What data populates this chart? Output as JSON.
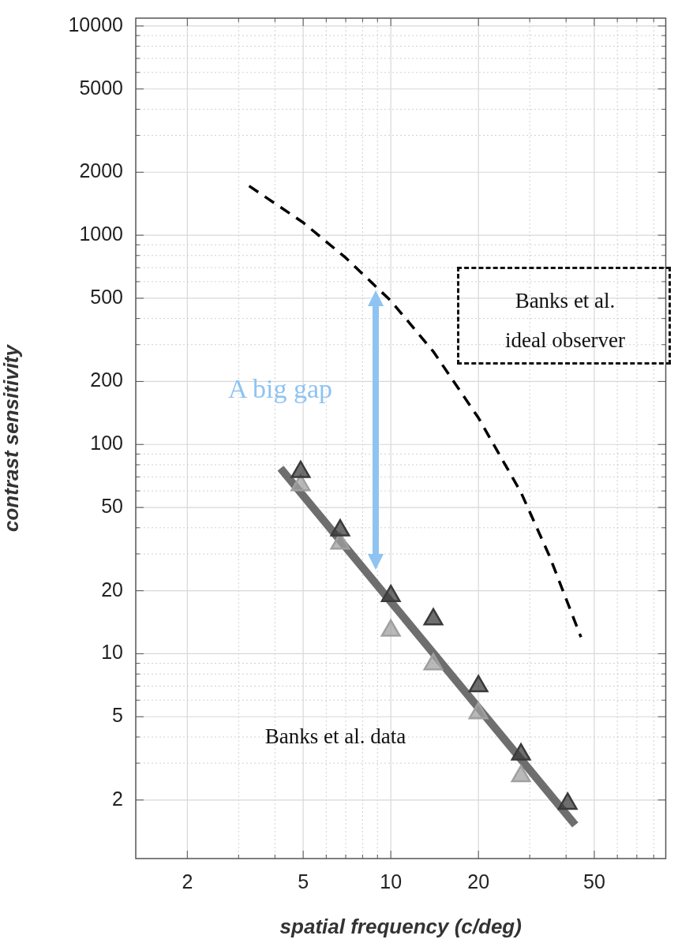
{
  "chart_data": {
    "type": "scatter",
    "xlabel": "spatial frequency (c/deg)",
    "ylabel": "contrast sensitivity",
    "log": "xy",
    "grid": true,
    "marker": "triangle",
    "xlim": [
      1.33,
      88
    ],
    "ylim": [
      1.05,
      10900
    ],
    "xticks": [
      2,
      {
        "value": 3,
        "label": null
      },
      {
        "value": 4,
        "label": null
      },
      5,
      {
        "value": 6,
        "label": null
      },
      {
        "value": 7,
        "label": null
      },
      {
        "value": 8,
        "label": null
      },
      {
        "value": 9,
        "label": null
      },
      10,
      20,
      {
        "value": 30,
        "label": null
      },
      {
        "value": 40,
        "label": null
      },
      50,
      {
        "value": 60,
        "label": null
      },
      {
        "value": 70,
        "label": null
      },
      {
        "value": 80,
        "label": null
      }
    ],
    "yticks": [
      2,
      {
        "value": 3,
        "label": null
      },
      {
        "value": 4,
        "label": null
      },
      5,
      {
        "value": 6,
        "label": null
      },
      {
        "value": 7,
        "label": null
      },
      {
        "value": 8,
        "label": null
      },
      {
        "value": 9,
        "label": null
      },
      10,
      20,
      {
        "value": 30,
        "label": null
      },
      {
        "value": 40,
        "label": null
      },
      50,
      {
        "value": 60,
        "label": null
      },
      {
        "value": 70,
        "label": null
      },
      {
        "value": 80,
        "label": null
      },
      {
        "value": 90,
        "label": null
      },
      100,
      200,
      {
        "value": 300,
        "label": null
      },
      {
        "value": 400,
        "label": null
      },
      500,
      {
        "value": 600,
        "label": null
      },
      {
        "value": 700,
        "label": null
      },
      {
        "value": 800,
        "label": null
      },
      {
        "value": 900,
        "label": null
      },
      1000,
      2000,
      {
        "value": 3000,
        "label": null
      },
      {
        "value": 4000,
        "label": null
      },
      5000,
      {
        "value": 6000,
        "label": null
      },
      {
        "value": 7000,
        "label": null
      },
      {
        "value": 8000,
        "label": null
      },
      {
        "value": 9000,
        "label": null
      },
      10000
    ],
    "series": [
      {
        "type": "line",
        "color": "#000000",
        "line_style": "dashed",
        "marker": "none",
        "x": [
          3.26,
          5,
          7,
          10,
          14,
          20,
          28,
          35,
          45
        ],
        "values": [
          1720,
          1150,
          780,
          486,
          278,
          134,
          59,
          29.5,
          12
        ]
      },
      {
        "type": "line",
        "color": "#5a5a5a",
        "line_style": "solid",
        "marker": "none",
        "x": [
          4.18,
          43
        ],
        "values": [
          77,
          1.52
        ]
      },
      {
        "type": "scatter",
        "color": "#a0a0a0",
        "x": [
          4.9,
          6.7,
          10,
          14,
          20,
          28
        ],
        "values": [
          64,
          33.6,
          12.9,
          8.9,
          5.2,
          2.6
        ]
      },
      {
        "type": "scatter",
        "color": "#3a3a3a",
        "x": [
          4.9,
          6.7,
          10,
          14,
          20,
          28,
          40.5
        ],
        "values": [
          74,
          38.9,
          18.9,
          14.6,
          7,
          3.3,
          1.92
        ]
      }
    ],
    "annotations": [
      "A big gap",
      "Banks et al. ideal observer",
      "Banks et al. data"
    ]
  }
}
